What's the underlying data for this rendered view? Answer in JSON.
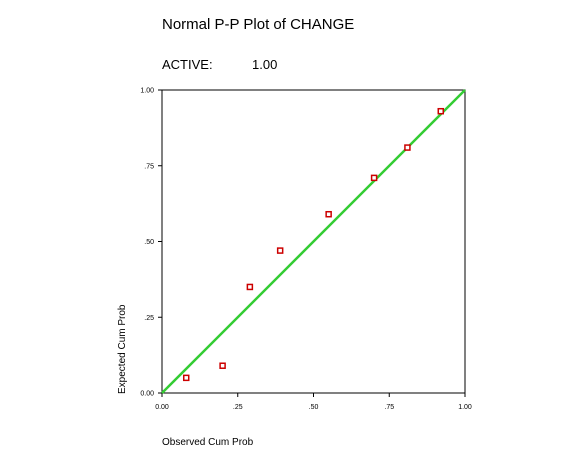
{
  "chart_data": {
    "type": "scatter",
    "title": "Normal P-P Plot of CHANGE",
    "subtitle": {
      "label": "ACTIVE:",
      "value": "1.00"
    },
    "xlabel": "Observed Cum Prob",
    "ylabel": "Expected Cum Prob",
    "xlim": [
      0,
      1
    ],
    "ylim": [
      0,
      1
    ],
    "x_ticks": [
      {
        "value": 0,
        "label": "0.00"
      },
      {
        "value": 0.25,
        "label": ".25"
      },
      {
        "value": 0.5,
        "label": ".50"
      },
      {
        "value": 0.75,
        "label": ".75"
      },
      {
        "value": 1,
        "label": "1.00"
      }
    ],
    "y_ticks": [
      {
        "value": 0,
        "label": "0.00"
      },
      {
        "value": 0.25,
        "label": ".25"
      },
      {
        "value": 0.5,
        "label": ".50"
      },
      {
        "value": 0.75,
        "label": ".75"
      },
      {
        "value": 1,
        "label": "1.00"
      }
    ],
    "grid": false,
    "reference_line": {
      "from": [
        0,
        0
      ],
      "to": [
        1,
        1
      ],
      "color": "#33cc33"
    },
    "points": [
      {
        "x": 0.08,
        "y": 0.05
      },
      {
        "x": 0.2,
        "y": 0.09
      },
      {
        "x": 0.29,
        "y": 0.35
      },
      {
        "x": 0.39,
        "y": 0.47
      },
      {
        "x": 0.55,
        "y": 0.59
      },
      {
        "x": 0.7,
        "y": 0.71
      },
      {
        "x": 0.81,
        "y": 0.81
      },
      {
        "x": 0.92,
        "y": 0.93
      }
    ],
    "point_color": "#cc0000"
  }
}
